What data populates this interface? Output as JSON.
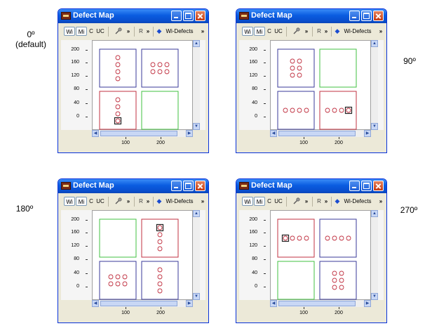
{
  "captions": [
    "0º\n(default)",
    "90º",
    "180º",
    "270º"
  ],
  "window": {
    "title": "Defect Map",
    "toolbar": {
      "wi": "Wi",
      "mi": "Mi",
      "c": "C",
      "uc": "UC",
      "more": "»",
      "r_label": "R",
      "defects": "Wi-Defects"
    },
    "y_ticks": [
      "200",
      "160",
      "120",
      "80",
      "40",
      "0"
    ],
    "x_ticks": [
      "100",
      "200"
    ]
  },
  "colors": {
    "red": "#c03040",
    "blue": "#3a3a9a",
    "green": "#40c040",
    "accent": "#1a4bd0"
  },
  "panels": [
    {
      "rotation": "0º",
      "dies": [
        {
          "c": 0,
          "r": 0,
          "color": "blue",
          "cols": 1,
          "rows": 4,
          "defects": 4,
          "marked": null
        },
        {
          "c": 1,
          "r": 0,
          "color": "blue",
          "cols": 3,
          "rows": 2,
          "defects": 6,
          "marked": null
        },
        {
          "c": 0,
          "r": 1,
          "color": "red",
          "cols": 1,
          "rows": 4,
          "defects": 4,
          "marked": 3
        },
        {
          "c": 1,
          "r": 1,
          "color": "green",
          "cols": 0,
          "rows": 0,
          "defects": 0,
          "marked": null
        }
      ]
    },
    {
      "rotation": "90º",
      "dies": [
        {
          "c": 0,
          "r": 0,
          "color": "blue",
          "cols": 2,
          "rows": 3,
          "defects": 6,
          "marked": null
        },
        {
          "c": 1,
          "r": 0,
          "color": "green",
          "cols": 0,
          "rows": 0,
          "defects": 0,
          "marked": null
        },
        {
          "c": 0,
          "r": 1,
          "color": "blue",
          "cols": 4,
          "rows": 1,
          "defects": 4,
          "marked": null
        },
        {
          "c": 1,
          "r": 1,
          "color": "red",
          "cols": 4,
          "rows": 1,
          "defects": 4,
          "marked": 3
        }
      ]
    },
    {
      "rotation": "180º",
      "dies": [
        {
          "c": 0,
          "r": 0,
          "color": "green",
          "cols": 0,
          "rows": 0,
          "defects": 0,
          "marked": null
        },
        {
          "c": 1,
          "r": 0,
          "color": "red",
          "cols": 1,
          "rows": 4,
          "defects": 4,
          "marked": 0
        },
        {
          "c": 0,
          "r": 1,
          "color": "blue",
          "cols": 3,
          "rows": 2,
          "defects": 6,
          "marked": null
        },
        {
          "c": 1,
          "r": 1,
          "color": "blue",
          "cols": 1,
          "rows": 4,
          "defects": 4,
          "marked": null
        }
      ]
    },
    {
      "rotation": "270º",
      "dies": [
        {
          "c": 0,
          "r": 0,
          "color": "red",
          "cols": 4,
          "rows": 1,
          "defects": 4,
          "marked": 0
        },
        {
          "c": 1,
          "r": 0,
          "color": "blue",
          "cols": 4,
          "rows": 1,
          "defects": 4,
          "marked": null
        },
        {
          "c": 0,
          "r": 1,
          "color": "green",
          "cols": 0,
          "rows": 0,
          "defects": 0,
          "marked": null
        },
        {
          "c": 1,
          "r": 1,
          "color": "blue",
          "cols": 2,
          "rows": 3,
          "defects": 6,
          "marked": null
        }
      ]
    }
  ]
}
